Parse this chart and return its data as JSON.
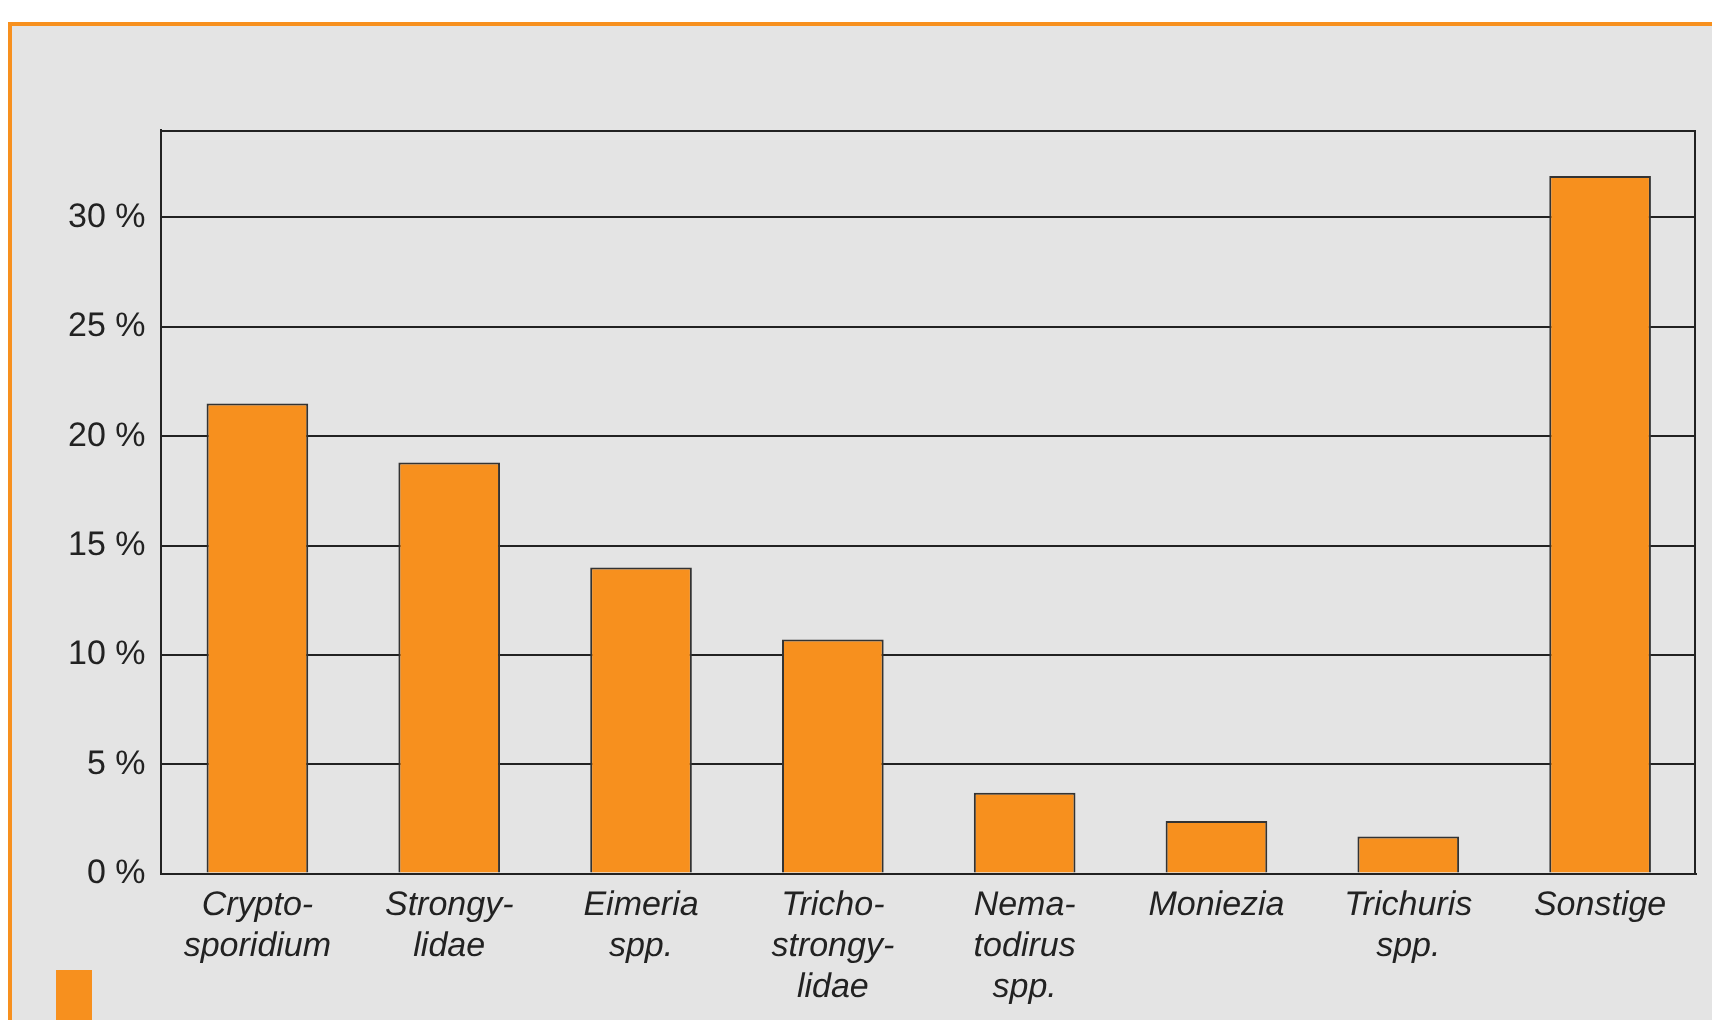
{
  "chart_data": {
    "type": "bar",
    "categories": [
      "Crypto-\nsporidium",
      "Strongy-\nlidae",
      "Eimeria\nspp.",
      "Tricho-\nstrongy-\nlidae",
      "Nema-\ntodirus\nspp.",
      "Moniezia",
      "Trichuris\nspp.",
      "Sonstige"
    ],
    "values": [
      21.5,
      18.8,
      14.0,
      10.7,
      3.7,
      2.4,
      1.7,
      31.9
    ],
    "color": "#f7901e",
    "ylim": [
      0,
      34
    ],
    "yticks": [
      {
        "value": 0,
        "label": "0 %"
      },
      {
        "value": 5,
        "label": "5 %"
      },
      {
        "value": 10,
        "label": "10 %"
      },
      {
        "value": 15,
        "label": "15 %"
      },
      {
        "value": 20,
        "label": "20 %"
      },
      {
        "value": 25,
        "label": "25 %"
      },
      {
        "value": 30,
        "label": "30 %"
      }
    ],
    "grid": "y"
  }
}
